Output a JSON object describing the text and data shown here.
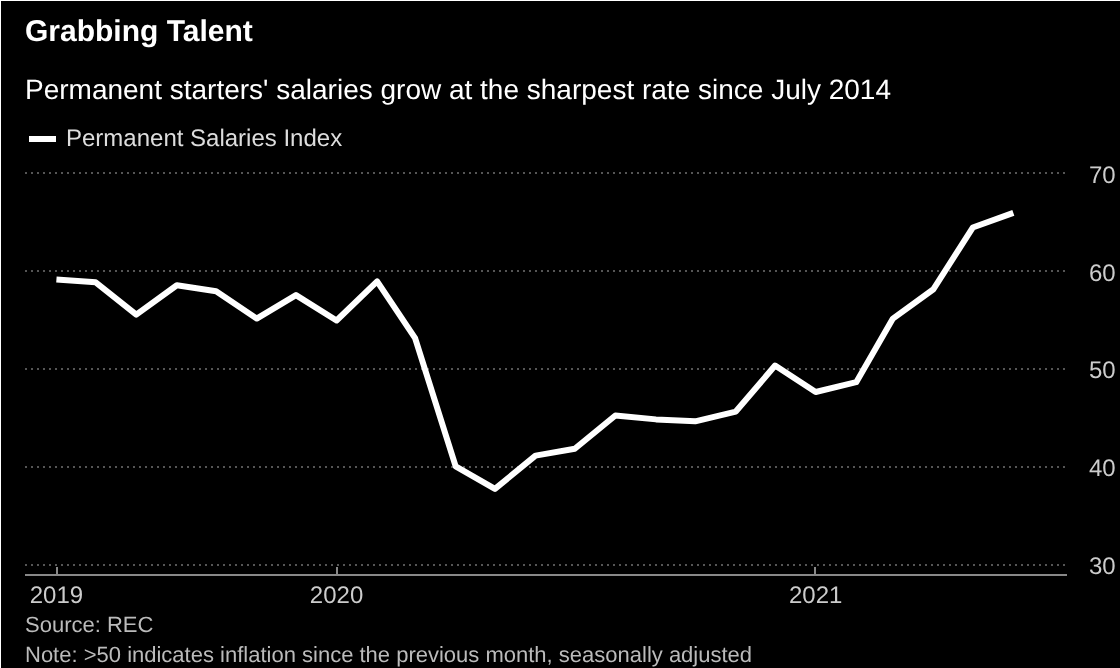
{
  "chart_data": {
    "type": "line",
    "title": "Grabbing Talent",
    "subtitle": "Permanent starters' salaries grow at the sharpest rate since July 2014",
    "x": [
      "2019-06",
      "2019-07",
      "2019-08",
      "2019-09",
      "2019-10",
      "2019-11",
      "2019-12",
      "2020-01",
      "2020-02",
      "2020-03",
      "2020-04",
      "2020-05",
      "2020-06",
      "2020-07",
      "2020-08",
      "2020-09",
      "2020-10",
      "2020-11",
      "2020-12",
      "2021-01",
      "2021-02",
      "2021-03",
      "2021-04",
      "2021-05",
      "2021-06"
    ],
    "series": [
      {
        "name": "Permanent Salaries Index",
        "color": "#ffffff",
        "values": [
          59.2,
          58.9,
          55.6,
          58.6,
          58.0,
          55.2,
          57.6,
          55.0,
          59.0,
          53.2,
          40.1,
          37.8,
          41.2,
          41.9,
          45.3,
          44.9,
          44.7,
          45.7,
          50.4,
          47.7,
          48.7,
          55.2,
          58.2,
          64.5,
          66.0
        ]
      }
    ],
    "xlim": [
      "2019-05-08",
      "2021-07-12"
    ],
    "xticks": [
      {
        "value": "2019-06",
        "label": "2019"
      },
      {
        "value": "2020-01",
        "label": "2020"
      },
      {
        "value": "2021-01",
        "label": "2021"
      }
    ],
    "ylim": [
      29,
      76
    ],
    "yticks": [
      30,
      40,
      50,
      60,
      70
    ],
    "grid": "y",
    "legend": "top left",
    "marker": "none",
    "line_style": "solid",
    "annotations": [
      "Source: REC",
      "Note: >50 indicates inflation since the previous month, seasonally adjusted"
    ]
  }
}
